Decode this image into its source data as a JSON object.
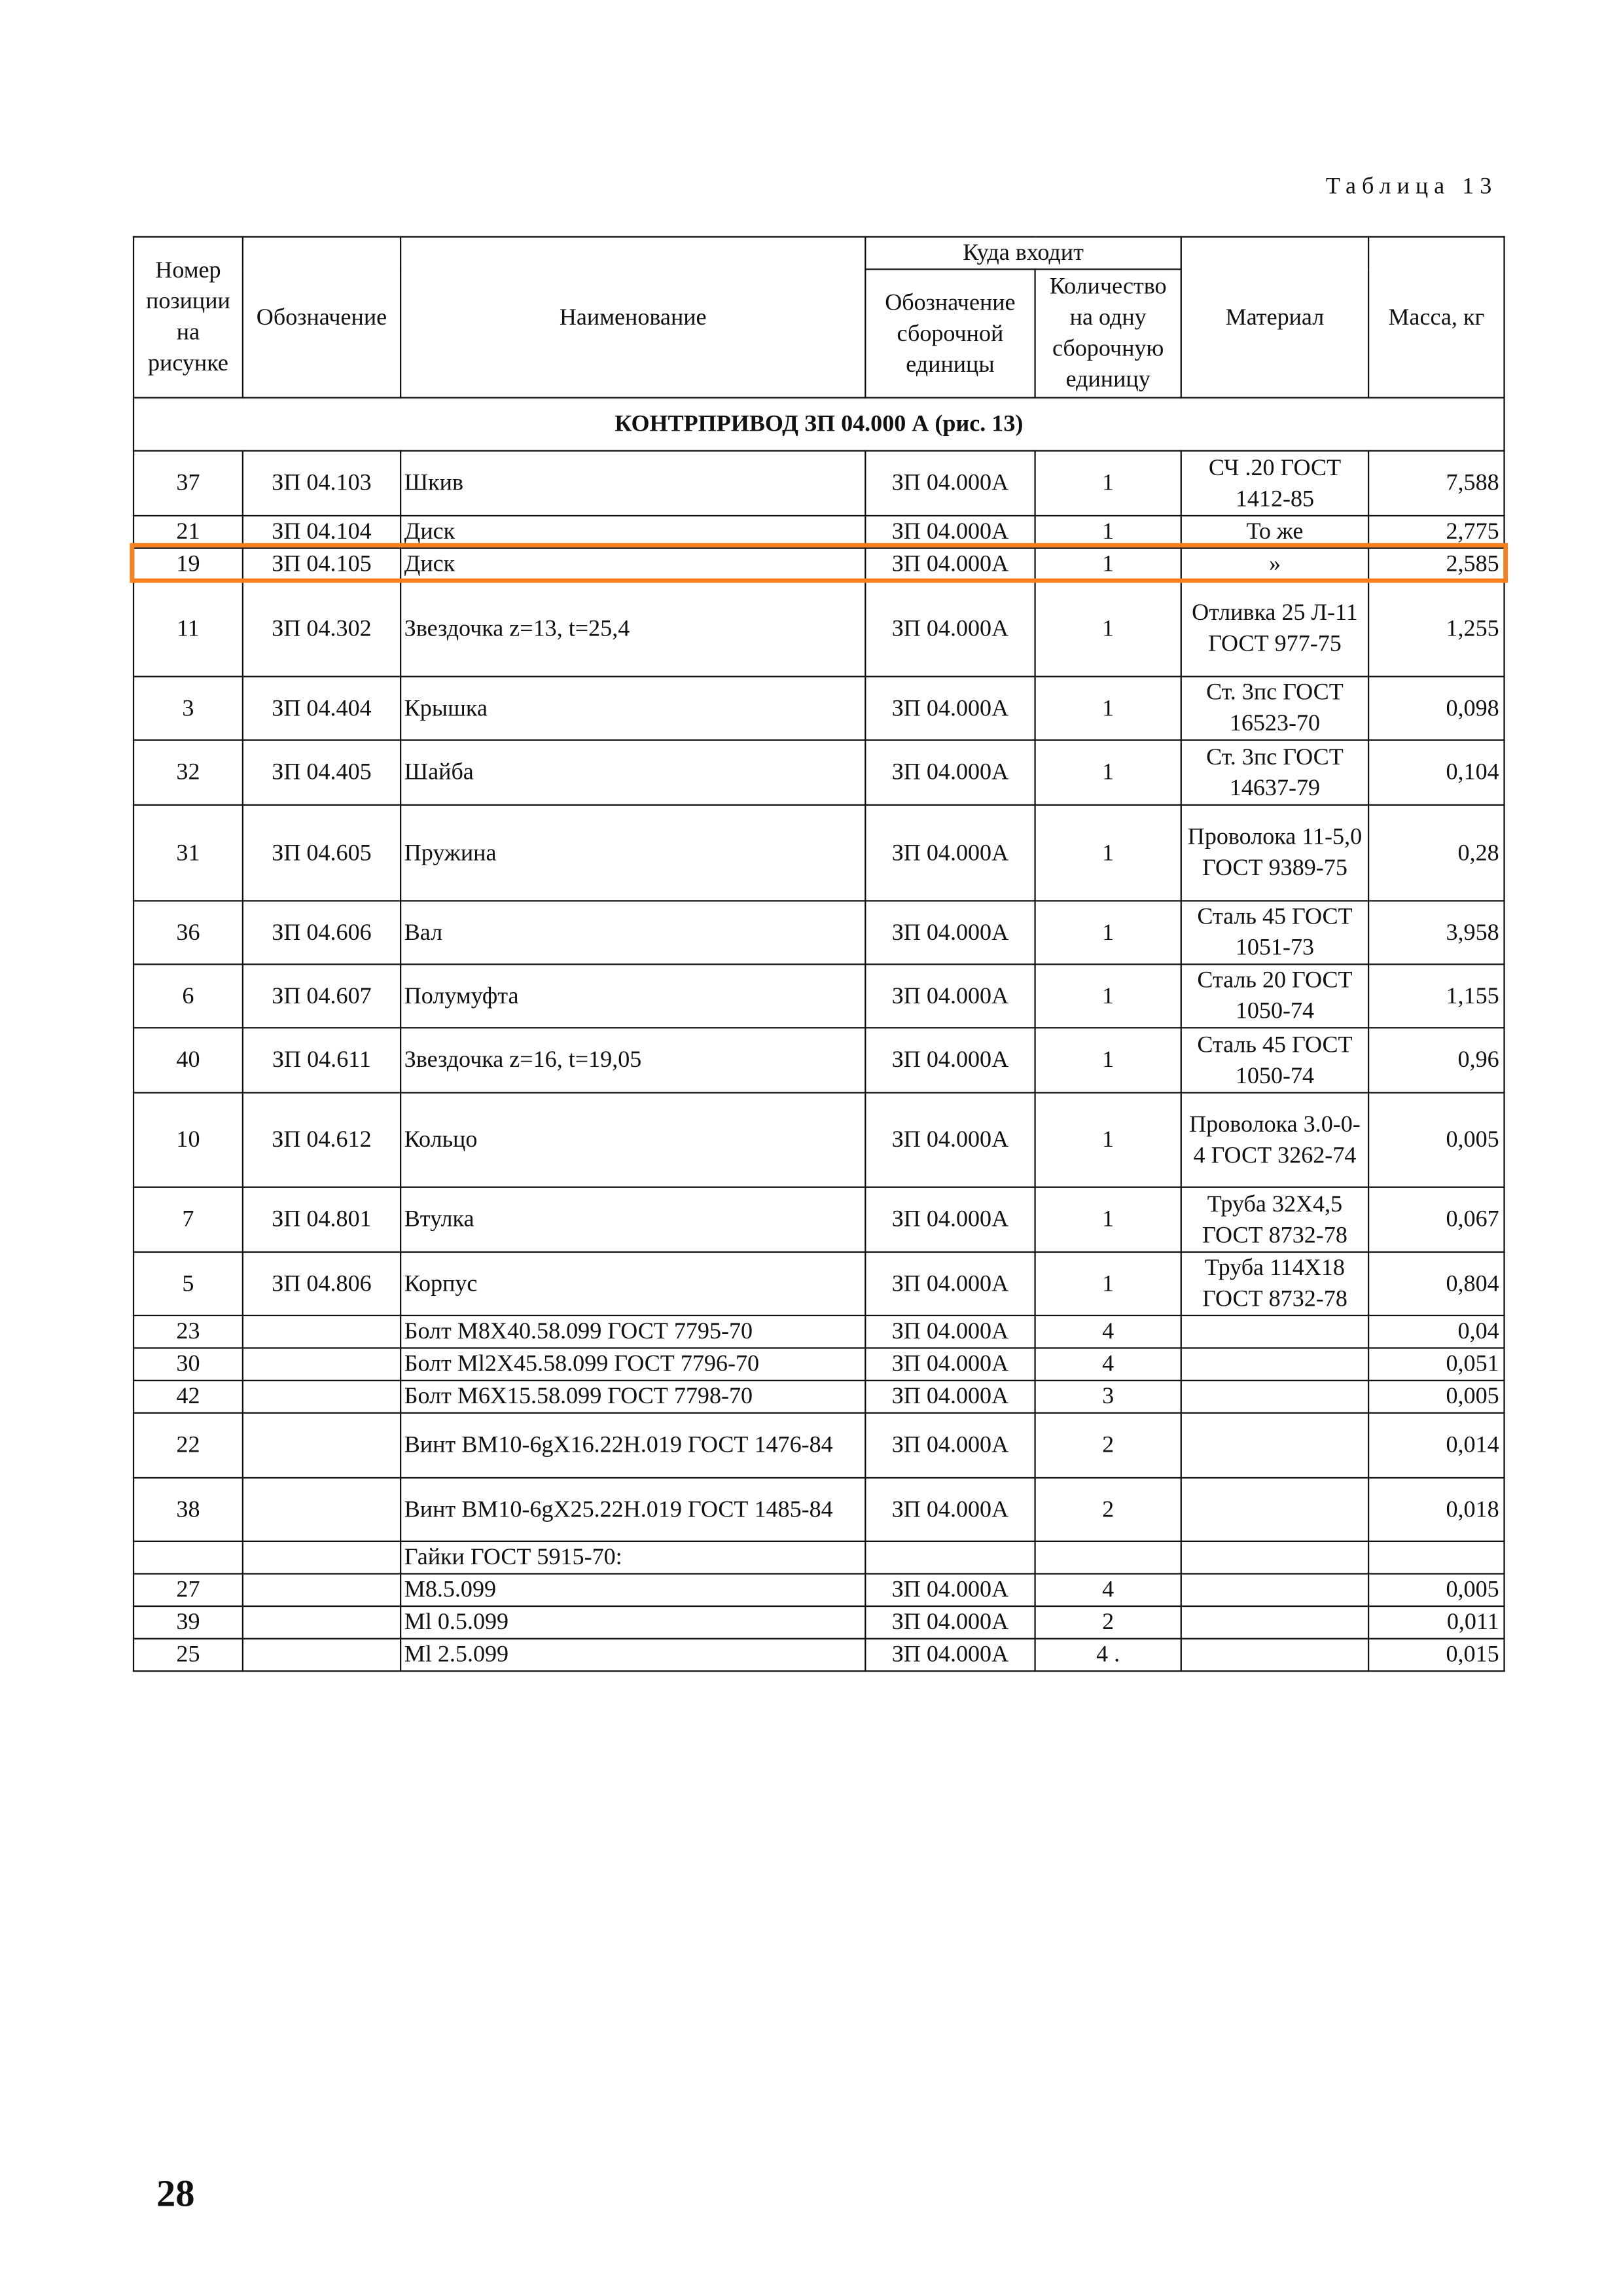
{
  "table_caption": "Таблица 13",
  "page_number": "28",
  "highlight_color": "#f5821f",
  "headers": {
    "position": "Номер позиции на рисунке",
    "designation": "Обозначение",
    "name": "Наименование",
    "where_used": "Куда входит",
    "assembly_designation": "Обозначение сборочной единицы",
    "qty_per_assembly": "Количество на одну сборочную единицу",
    "material": "Материал",
    "mass": "Масса, кг"
  },
  "section_title": "КОНТРПРИВОД ЗП 04.000 А (рис. 13)",
  "highlighted_row_index": 2,
  "rows": [
    {
      "pos": "37",
      "des": "ЗП 04.103",
      "name": "Шкив",
      "asm": "ЗП 04.000А",
      "qty": "1",
      "mat": "СЧ .20 ГОСТ 1412-85",
      "mass": "7,588"
    },
    {
      "pos": "21",
      "des": "ЗП 04.104",
      "name": "Диск",
      "asm": "ЗП 04.000А",
      "qty": "1",
      "mat": "То же",
      "mass": "2,775"
    },
    {
      "pos": "19",
      "des": "ЗП 04.105",
      "name": "Диск",
      "asm": "ЗП 04.000А",
      "qty": "1",
      "mat": "»",
      "mass": "2,585"
    },
    {
      "pos": "11",
      "des": "ЗП 04.302",
      "name": "Звездочка z=13, t=25,4",
      "asm": "ЗП 04.000А",
      "qty": "1",
      "mat": "Отливка 25 Л-11 ГОСТ 977-75",
      "mass": "1,255"
    },
    {
      "pos": "3",
      "des": "ЗП 04.404",
      "name": "Крышка",
      "asm": "ЗП 04.000А",
      "qty": "1",
      "mat": "Ст. 3пс ГОСТ 16523-70",
      "mass": "0,098"
    },
    {
      "pos": "32",
      "des": "ЗП 04.405",
      "name": "Шайба",
      "asm": "ЗП 04.000А",
      "qty": "1",
      "mat": "Ст. 3пс ГОСТ 14637-79",
      "mass": "0,104"
    },
    {
      "pos": "31",
      "des": "ЗП 04.605",
      "name": "Пружина",
      "asm": "ЗП 04.000А",
      "qty": "1",
      "mat": "Проволока 11-5,0 ГОСТ 9389-75",
      "mass": "0,28"
    },
    {
      "pos": "36",
      "des": "ЗП 04.606",
      "name": "Вал",
      "asm": "ЗП 04.000А",
      "qty": "1",
      "mat": "Сталь 45 ГОСТ 1051-73",
      "mass": "3,958"
    },
    {
      "pos": "6",
      "des": "ЗП 04.607",
      "name": "Полумуфта",
      "asm": "ЗП 04.000А",
      "qty": "1",
      "mat": "Сталь 20 ГОСТ 1050-74",
      "mass": "1,155"
    },
    {
      "pos": "40",
      "des": "ЗП 04.611",
      "name": "Звездочка z=16, t=19,05",
      "asm": "ЗП 04.000А",
      "qty": "1",
      "mat": "Сталь 45 ГОСТ 1050-74",
      "mass": "0,96"
    },
    {
      "pos": "10",
      "des": "ЗП 04.612",
      "name": "Кольцо",
      "asm": "ЗП 04.000А",
      "qty": "1",
      "mat": "Проволока 3.0-0-4 ГОСТ 3262-74",
      "mass": "0,005"
    },
    {
      "pos": "7",
      "des": "ЗП 04.801",
      "name": "Втулка",
      "asm": "ЗП 04.000А",
      "qty": "1",
      "mat": "Труба 32Х4,5 ГОСТ 8732-78",
      "mass": "0,067"
    },
    {
      "pos": "5",
      "des": "ЗП 04.806",
      "name": "Корпус",
      "asm": "ЗП 04.000А",
      "qty": "1",
      "mat": "Труба 114Х18 ГОСТ 8732-78",
      "mass": "0,804"
    },
    {
      "pos": "23",
      "des": "",
      "name": "Болт М8Х40.58.099 ГОСТ 7795-70",
      "asm": "ЗП 04.000А",
      "qty": "4",
      "mat": "",
      "mass": "0,04"
    },
    {
      "pos": "30",
      "des": "",
      "name": "Болт Ml2X45.58.099 ГОСТ 7796-70",
      "asm": "ЗП 04.000А",
      "qty": "4",
      "mat": "",
      "mass": "0,051"
    },
    {
      "pos": "42",
      "des": "",
      "name": "Болт М6Х15.58.099 ГОСТ 7798-70",
      "asm": "ЗП 04.000А",
      "qty": "3",
      "mat": "",
      "mass": "0,005"
    },
    {
      "pos": "22",
      "des": "",
      "name": "Винт ВМ10-6gX16.22H.019 ГОСТ 1476-84",
      "asm": "ЗП 04.000А",
      "qty": "2",
      "mat": "",
      "mass": "0,014"
    },
    {
      "pos": "38",
      "des": "",
      "name": "Винт ВМ10-6gX25.22H.019 ГОСТ 1485-84",
      "asm": "ЗП 04.000А",
      "qty": "2",
      "mat": "",
      "mass": "0,018"
    },
    {
      "pos": "",
      "des": "",
      "name": "Гайки ГОСТ 5915-70:",
      "asm": "",
      "qty": "",
      "mat": "",
      "mass": ""
    },
    {
      "pos": "27",
      "des": "",
      "name": "M8.5.099",
      "asm": "ЗП 04.000А",
      "qty": "4",
      "mat": "",
      "mass": "0,005"
    },
    {
      "pos": "39",
      "des": "",
      "name": "Ml 0.5.099",
      "asm": "ЗП 04.000А",
      "qty": "2",
      "mat": "",
      "mass": "0,011"
    },
    {
      "pos": "25",
      "des": "",
      "name": "Ml 2.5.099",
      "asm": "ЗП 04.000А",
      "qty": "4 .",
      "mat": "",
      "mass": "0,015"
    }
  ]
}
